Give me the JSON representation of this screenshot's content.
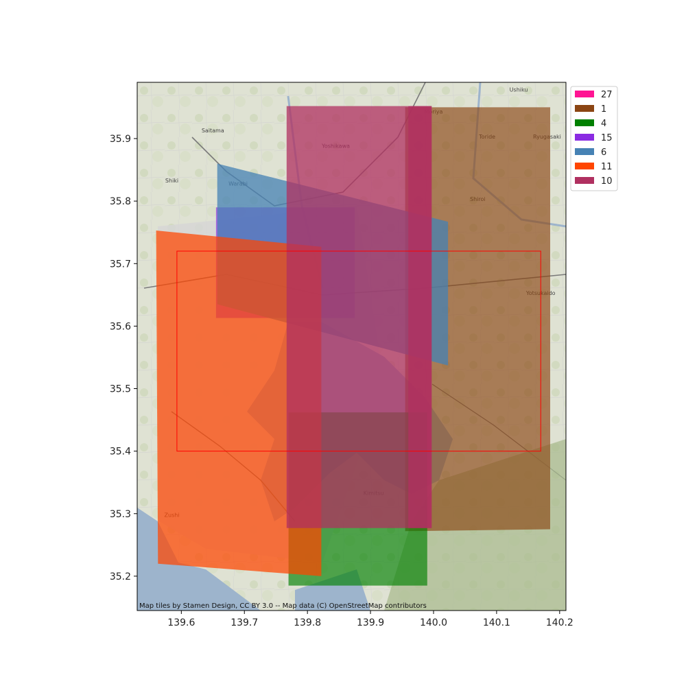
{
  "chart_data": {
    "type": "map",
    "title": "",
    "xlabel": "",
    "ylabel": "",
    "xlim": [
      139.53,
      140.21
    ],
    "ylim": [
      35.145,
      35.99
    ],
    "x_ticks": [
      139.6,
      139.7,
      139.8,
      139.9,
      140.0,
      140.1,
      140.2
    ],
    "y_ticks": [
      35.2,
      35.3,
      35.4,
      35.5,
      35.6,
      35.7,
      35.8,
      35.9
    ],
    "grid": false,
    "legend_placement": "outside-top-right",
    "attribution": "Map tiles by Stamen Design, CC BY 3.0 -- Map data (C) OpenStreetMap contributors",
    "basemap_place_names": [
      {
        "name": "Ushiku",
        "lon": 140.135,
        "lat": 35.975
      },
      {
        "name": "Moriya",
        "lon": 140.0,
        "lat": 35.94
      },
      {
        "name": "Saitama",
        "lon": 139.65,
        "lat": 35.91
      },
      {
        "name": "Toride",
        "lon": 140.085,
        "lat": 35.9
      },
      {
        "name": "Ryugasaki",
        "lon": 140.18,
        "lat": 35.9
      },
      {
        "name": "Yoshikawa",
        "lon": 139.845,
        "lat": 35.885
      },
      {
        "name": "Shiki",
        "lon": 139.585,
        "lat": 35.83
      },
      {
        "name": "Warabi",
        "lon": 139.69,
        "lat": 35.825
      },
      {
        "name": "Shiroi",
        "lon": 140.07,
        "lat": 35.8
      },
      {
        "name": "Yotsukaido",
        "lon": 140.17,
        "lat": 35.65
      },
      {
        "name": "Kimitsu",
        "lon": 139.905,
        "lat": 35.33
      },
      {
        "name": "Zushi",
        "lon": 139.585,
        "lat": 35.295
      }
    ],
    "series": [
      {
        "name": "27",
        "color": "#ff1493",
        "fill_opacity": 0.65,
        "polygons": []
      },
      {
        "name": "1",
        "color": "#8b4513",
        "fill_opacity": 0.65,
        "polygons": [
          [
            [
              139.955,
              35.95
            ],
            [
              140.185,
              35.95
            ],
            [
              140.185,
              35.275
            ],
            [
              139.955,
              35.272
            ]
          ]
        ]
      },
      {
        "name": "4",
        "color": "#008000",
        "fill_opacity": 0.65,
        "polygons": [
          [
            [
              139.77,
              35.462
            ],
            [
              139.99,
              35.462
            ],
            [
              139.99,
              35.185
            ],
            [
              139.77,
              35.185
            ]
          ]
        ]
      },
      {
        "name": "15",
        "color": "#8a2be2",
        "fill_opacity": 0.65,
        "polygons": [
          [
            [
              139.655,
              35.79
            ],
            [
              139.875,
              35.79
            ],
            [
              139.875,
              35.613
            ],
            [
              139.655,
              35.613
            ]
          ]
        ]
      },
      {
        "name": "6",
        "color": "#4682b4",
        "fill_opacity": 0.75,
        "polygons": [
          [
            [
              139.657,
              35.86
            ],
            [
              140.023,
              35.767
            ],
            [
              140.023,
              35.537
            ],
            [
              139.657,
              35.635
            ]
          ]
        ]
      },
      {
        "name": "11",
        "color": "#ff4500",
        "fill_opacity": 0.72,
        "polygons": [
          [
            [
              139.56,
              35.753
            ],
            [
              139.822,
              35.727
            ],
            [
              139.822,
              35.2
            ],
            [
              139.563,
              35.22
            ]
          ]
        ]
      },
      {
        "name": "10",
        "color": "#b03060",
        "fill_opacity": 0.75,
        "polygons": [
          [
            [
              139.767,
              35.952
            ],
            [
              139.997,
              35.952
            ],
            [
              139.997,
              35.277
            ],
            [
              139.767,
              35.277
            ]
          ],
          [
            [
              139.96,
              35.952
            ],
            [
              139.997,
              35.952
            ],
            [
              139.997,
              35.277
            ],
            [
              139.96,
              35.277
            ]
          ]
        ]
      }
    ],
    "bbox_outline": {
      "color": "#ff0000",
      "x": [
        139.593,
        140.17
      ],
      "y": [
        35.4,
        35.72
      ]
    }
  }
}
